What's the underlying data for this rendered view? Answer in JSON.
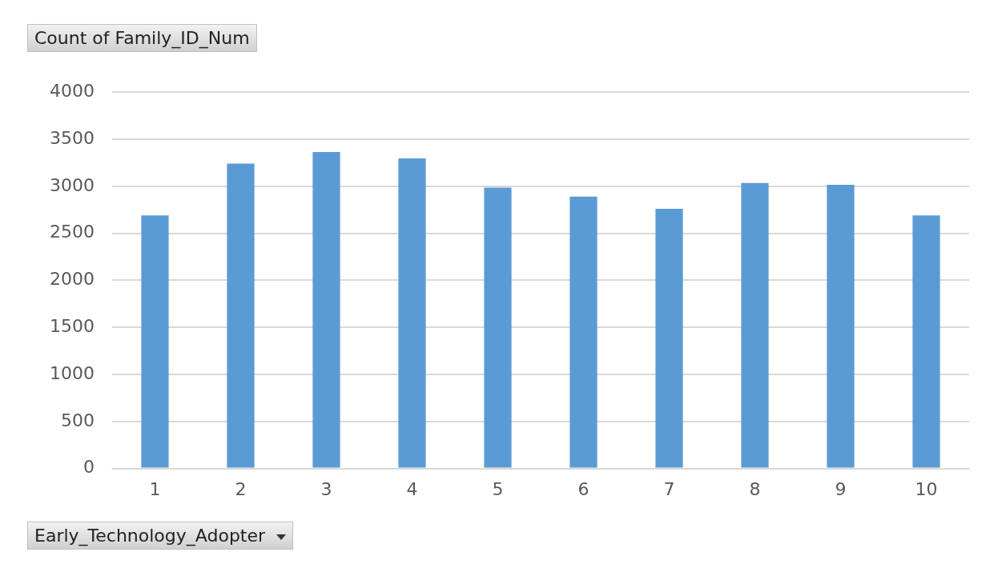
{
  "chart_data": {
    "type": "bar",
    "title": "Count of Family_ID_Num",
    "xlabel": "Early_Technology_Adopter",
    "categories": [
      "1",
      "2",
      "3",
      "4",
      "5",
      "6",
      "7",
      "8",
      "9",
      "10"
    ],
    "values": [
      2690,
      3240,
      3365,
      3295,
      2985,
      2890,
      2760,
      3035,
      3015,
      2690
    ],
    "color": "#5b9bd5",
    "ylim": [
      0,
      4000
    ],
    "yticks": [
      0,
      500,
      1000,
      1500,
      2000,
      2500,
      3000,
      3500,
      4000
    ],
    "grid": "y",
    "legend": false
  }
}
